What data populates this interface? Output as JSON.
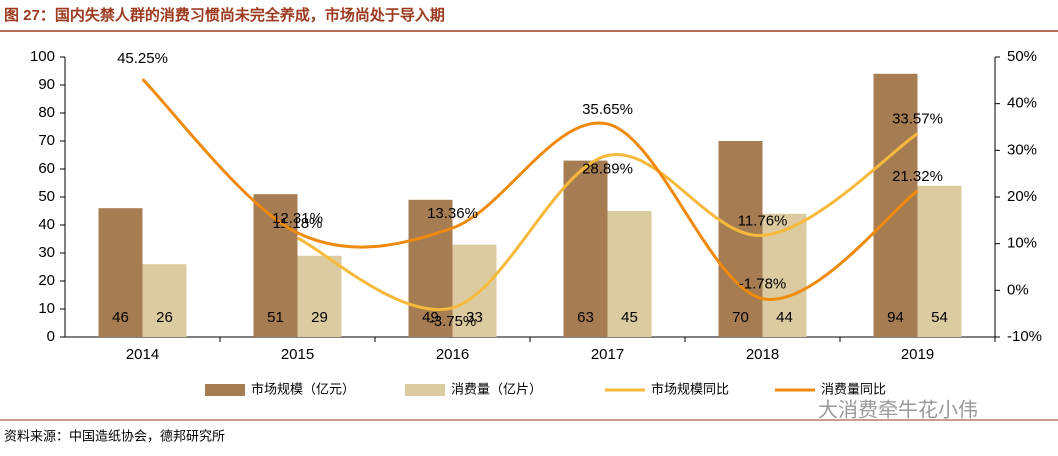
{
  "chart_data": {
    "type": "bar-line",
    "title": "图 27：国内失禁人群的消费习惯尚未完全养成，市场尚处于导入期",
    "source": "资料来源：中国造纸协会，德邦研究所",
    "watermark": "大消费牵牛花小伟",
    "categories": [
      "2014",
      "2015",
      "2016",
      "2017",
      "2018",
      "2019"
    ],
    "series": [
      {
        "name": "市场规模（亿元）",
        "type": "bar",
        "color": "#a67c52",
        "values": [
          46,
          51,
          49,
          63,
          70,
          94
        ]
      },
      {
        "name": "消费量（亿片）",
        "type": "bar",
        "color": "#dccaa0",
        "values": [
          26,
          29,
          33,
          45,
          44,
          54
        ]
      },
      {
        "name": "市场规模同比",
        "type": "line",
        "axis": "y2",
        "color": "#f6b93b",
        "values": [
          null,
          11.18,
          -3.75,
          28.89,
          11.76,
          33.57
        ],
        "value_labels": [
          null,
          "11.18%",
          "-3.75%",
          "28.89%",
          "11.76%",
          "33.57%"
        ]
      },
      {
        "name": "消费量同比",
        "type": "line",
        "axis": "y2",
        "color": "#ef8a0c",
        "values": [
          45.25,
          12.31,
          13.36,
          35.65,
          -1.78,
          21.32
        ],
        "value_labels": [
          "45.25%",
          "12.31%",
          "13.36%",
          "35.65%",
          "-1.78%",
          "21.32%"
        ]
      }
    ],
    "ylim": [
      0,
      100
    ],
    "yticks": [
      0,
      10,
      20,
      30,
      40,
      50,
      60,
      70,
      80,
      90,
      100
    ],
    "y2lim": [
      -10,
      50
    ],
    "y2ticks": [
      {
        "value": -10,
        "label": "-10%"
      },
      {
        "value": 0,
        "label": "0%"
      },
      {
        "value": 10,
        "label": "10%"
      },
      {
        "value": 20,
        "label": "20%"
      },
      {
        "value": 30,
        "label": "30%"
      },
      {
        "value": 40,
        "label": "40%"
      },
      {
        "value": 50,
        "label": "50%"
      }
    ],
    "grid": false
  }
}
